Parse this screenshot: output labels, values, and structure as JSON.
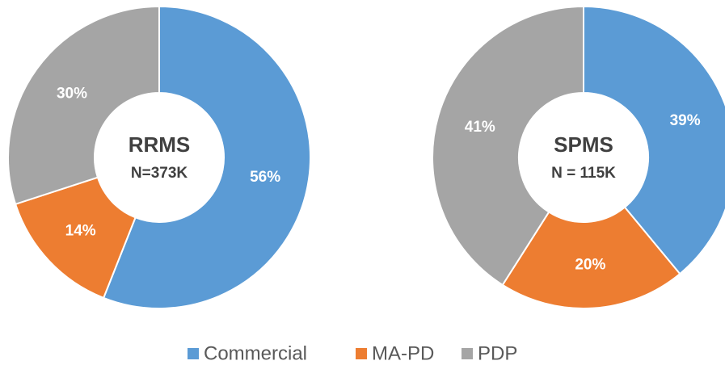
{
  "chart_data": [
    {
      "type": "donut",
      "title": "RRMS",
      "subtitle": "N=373K",
      "categories": [
        "Commercial",
        "MA-PD",
        "PDP"
      ],
      "values": [
        56,
        14,
        30
      ],
      "value_labels": [
        "56%",
        "14%",
        "30%"
      ],
      "colors": [
        "#5b9bd5",
        "#ed7d31",
        "#a5a5a5"
      ]
    },
    {
      "type": "donut",
      "title": "SPMS",
      "subtitle": "N = 115K",
      "categories": [
        "Commercial",
        "MA-PD",
        "PDP"
      ],
      "values": [
        39,
        20,
        41
      ],
      "value_labels": [
        "39%",
        "20%",
        "41%"
      ],
      "colors": [
        "#5b9bd5",
        "#ed7d31",
        "#a5a5a5"
      ]
    }
  ]
}
